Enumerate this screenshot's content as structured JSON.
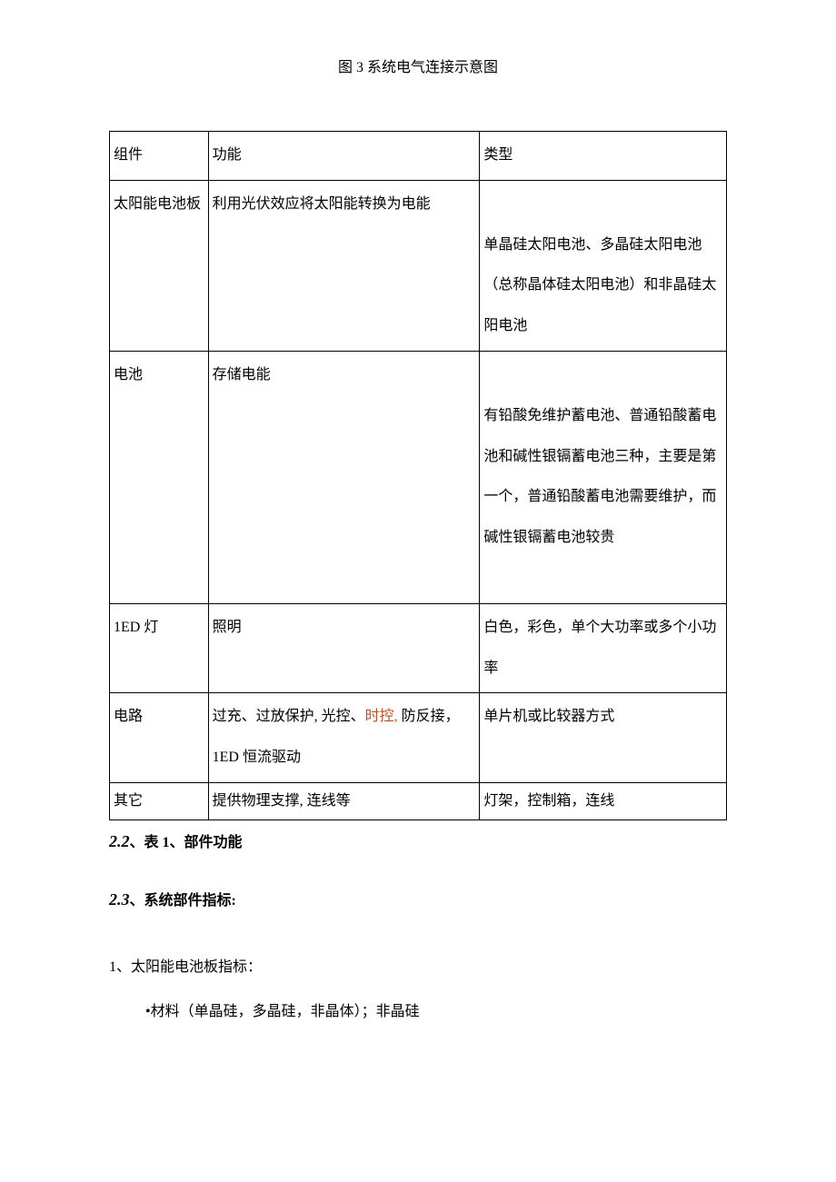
{
  "figure_caption": "图 3 系统电气连接示意图",
  "table": {
    "header": {
      "c1": "组件",
      "c2": "功能",
      "c3": "类型"
    },
    "rows": [
      {
        "c1": "太阳能电池板",
        "c2": "利用光伏效应将太阳能转换为电能",
        "c3": "单晶硅太阳电池、多晶硅太阳电池（总称晶体硅太阳电池）和非晶硅太阳电池"
      },
      {
        "c1": "电池",
        "c2": "存储电能",
        "c3": "有铅酸免维护蓄电池、普通铅酸蓄电池和碱性银镉蓄电池三种，主要是第一个，普通铅酸蓄电池需要维护，而碱性银镉蓄电池较贵"
      },
      {
        "c1": "1ED 灯",
        "c2": "照明",
        "c3": "白色，彩色，单个大功率或多个小功率"
      },
      {
        "c1": "电路",
        "c2_pre": "过充、过放保护, 光控、",
        "c2_orange": "时控,",
        "c2_post": " 防反接，1ED 恒流驱动",
        "c3": "单片机或比较器方式"
      },
      {
        "c1": "其它",
        "c2": "提供物理支撑, 连线等",
        "c3": "灯架，控制箱，连线"
      }
    ]
  },
  "heading_22_num": "2.2",
  "heading_22_text": "、表 1、部件功能",
  "heading_23_num": "2.3",
  "heading_23_text": "、系统部件指标:",
  "list_1": "1、太阳能电池板指标：",
  "sub_1": "•材料（单晶硅，多晶硅，非晶体）；非晶硅"
}
